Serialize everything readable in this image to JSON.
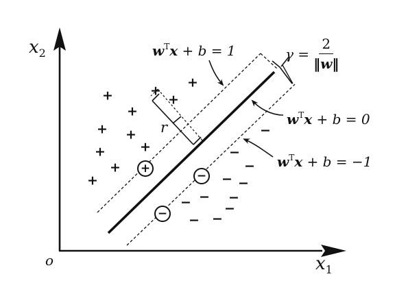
{
  "axes": {
    "x_label": "x",
    "x_sub": "1",
    "y_label": "x",
    "y_sub": "2",
    "origin": "o"
  },
  "equations": {
    "upper": {
      "w": "w",
      "T": "T",
      "x": "x",
      "rest": " + b = 1"
    },
    "middle": {
      "w": "w",
      "T": "T",
      "x": "x",
      "rest": " + b = 0"
    },
    "lower": {
      "w": "w",
      "T": "T",
      "x": "x",
      "rest": " + b = −1"
    }
  },
  "margin": {
    "gamma": "γ =",
    "numerator": "2",
    "denominator": "‖w‖"
  },
  "distance_label": "r",
  "plus_symbol": "+",
  "minus_symbol": "−",
  "support_plus": "+",
  "support_minus": "−"
}
